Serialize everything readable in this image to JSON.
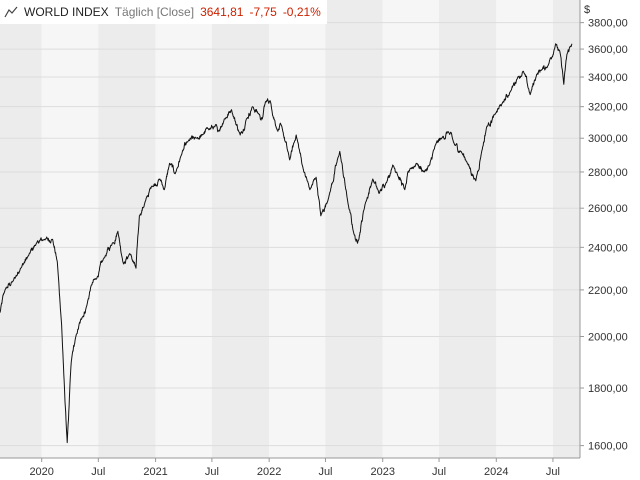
{
  "header": {
    "title": "WORLD INDEX",
    "frequency": "Täglich [Close]",
    "last": "3641,81",
    "change": "-7,75",
    "change_pct": "-0,21%",
    "currency": "$"
  },
  "colors": {
    "band_dark": "#ececec",
    "band_light": "#f6f6f6",
    "line": "#111111",
    "negative": "#cc2200",
    "grid": "#dddddd",
    "axis": "#999999"
  },
  "chart_data": {
    "type": "line",
    "scale": "log",
    "grid": true,
    "ylim": [
      1560,
      3980
    ],
    "xlim": [
      "2019-08-20",
      "2024-09-26"
    ],
    "y_ticks": [
      {
        "value": 1600,
        "label": "1600,00"
      },
      {
        "value": 1800,
        "label": "1800,00"
      },
      {
        "value": 2000,
        "label": "2000,00"
      },
      {
        "value": 2200,
        "label": "2200,00"
      },
      {
        "value": 2400,
        "label": "2400,00"
      },
      {
        "value": 2600,
        "label": "2600,00"
      },
      {
        "value": 2800,
        "label": "2800,00"
      },
      {
        "value": 3000,
        "label": "3000,00"
      },
      {
        "value": 3200,
        "label": "3200,00"
      },
      {
        "value": 3400,
        "label": "3400,00"
      },
      {
        "value": 3600,
        "label": "3600,00"
      },
      {
        "value": 3800,
        "label": "3800,00"
      }
    ],
    "x_ticks": [
      {
        "date": "2020-01-01",
        "label": "2020"
      },
      {
        "date": "2020-07-01",
        "label": "Jul"
      },
      {
        "date": "2021-01-01",
        "label": "2021"
      },
      {
        "date": "2021-07-01",
        "label": "Jul"
      },
      {
        "date": "2022-01-01",
        "label": "2022"
      },
      {
        "date": "2022-07-01",
        "label": "Jul"
      },
      {
        "date": "2023-01-01",
        "label": "2023"
      },
      {
        "date": "2023-07-01",
        "label": "Jul"
      },
      {
        "date": "2024-01-01",
        "label": "2024"
      },
      {
        "date": "2024-07-01",
        "label": "Jul"
      }
    ],
    "series": [
      {
        "x": [
          "2019-08-20",
          "2019-09-05",
          "2019-10-01",
          "2019-10-25",
          "2019-11-20",
          "2019-12-15",
          "2020-01-10",
          "2020-02-05",
          "2020-02-20",
          "2020-03-05",
          "2020-03-16",
          "2020-03-23",
          "2020-04-05",
          "2020-04-20",
          "2020-05-10",
          "2020-05-25",
          "2020-06-08",
          "2020-06-25",
          "2020-07-20",
          "2020-08-15",
          "2020-09-02",
          "2020-09-20",
          "2020-10-10",
          "2020-10-30",
          "2020-11-10",
          "2020-11-30",
          "2020-12-20",
          "2021-01-15",
          "2021-01-29",
          "2021-02-15",
          "2021-03-05",
          "2021-03-25",
          "2021-04-15",
          "2021-05-12",
          "2021-06-01",
          "2021-06-18",
          "2021-07-10",
          "2021-07-20",
          "2021-08-10",
          "2021-09-02",
          "2021-09-30",
          "2021-10-20",
          "2021-11-08",
          "2021-11-30",
          "2021-12-10",
          "2021-12-20",
          "2022-01-04",
          "2022-01-27",
          "2022-02-09",
          "2022-03-08",
          "2022-03-29",
          "2022-04-20",
          "2022-05-12",
          "2022-06-01",
          "2022-06-16",
          "2022-07-10",
          "2022-08-16",
          "2022-09-12",
          "2022-09-30",
          "2022-10-12",
          "2022-11-05",
          "2022-11-30",
          "2022-12-20",
          "2023-01-12",
          "2023-02-02",
          "2023-02-15",
          "2023-03-13",
          "2023-03-30",
          "2023-04-20",
          "2023-05-15",
          "2023-06-01",
          "2023-06-20",
          "2023-07-10",
          "2023-07-31",
          "2023-08-20",
          "2023-09-10",
          "2023-09-28",
          "2023-10-27",
          "2023-11-15",
          "2023-12-01",
          "2023-12-28",
          "2024-01-20",
          "2024-02-15",
          "2024-03-10",
          "2024-03-28",
          "2024-04-19",
          "2024-05-10",
          "2024-05-25",
          "2024-06-15",
          "2024-07-10",
          "2024-07-25",
          "2024-08-05",
          "2024-08-15",
          "2024-08-31"
        ],
        "y": [
          2100,
          2200,
          2240,
          2300,
          2360,
          2420,
          2440,
          2440,
          2330,
          2050,
          1750,
          1610,
          1900,
          2000,
          2080,
          2130,
          2220,
          2250,
          2350,
          2420,
          2480,
          2320,
          2370,
          2300,
          2560,
          2640,
          2720,
          2760,
          2700,
          2850,
          2790,
          2900,
          2980,
          3000,
          3020,
          3060,
          3070,
          3040,
          3120,
          3180,
          3020,
          3120,
          3200,
          3150,
          3120,
          3230,
          3240,
          3050,
          3080,
          2870,
          3020,
          2820,
          2700,
          2770,
          2560,
          2650,
          2920,
          2620,
          2470,
          2420,
          2620,
          2760,
          2680,
          2740,
          2840,
          2800,
          2700,
          2820,
          2850,
          2800,
          2840,
          2960,
          3000,
          3040,
          2960,
          2920,
          2860,
          2750,
          2920,
          3070,
          3150,
          3220,
          3300,
          3400,
          3440,
          3280,
          3420,
          3450,
          3480,
          3640,
          3560,
          3350,
          3560,
          3640
        ]
      }
    ]
  }
}
